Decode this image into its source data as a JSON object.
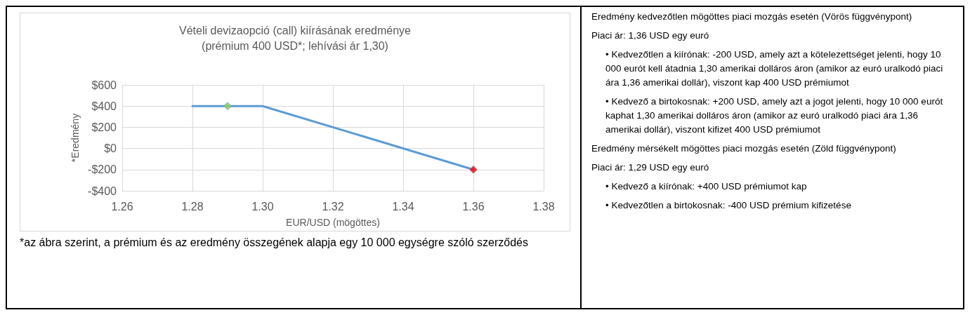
{
  "chart_data": {
    "type": "line",
    "title": "Vételi devizaopció (call) kiírásának eredménye\n(prémium 400 USD*; lehívási ár 1,30)",
    "xlabel": "EUR/USD (mögöttes)",
    "ylabel": "*Eredmény",
    "series": [
      {
        "color": "#5b9bd5",
        "x": [
          1.28,
          1.3,
          1.36
        ],
        "values": [
          400,
          400,
          -200
        ],
        "marker": "none"
      },
      {
        "type": "scatter",
        "colors": [
          "#92d050",
          "#ff0000"
        ],
        "x": [
          1.29,
          1.36
        ],
        "values": [
          400,
          -200
        ],
        "marker": "diamond"
      }
    ],
    "xlim": [
      1.26,
      1.38
    ],
    "xticks": [
      {
        "value": 1.26,
        "label": "1.26"
      },
      {
        "value": 1.28,
        "label": "1.28"
      },
      {
        "value": 1.3,
        "label": "1.30"
      },
      {
        "value": 1.32,
        "label": "1.32"
      },
      {
        "value": 1.34,
        "label": "1.34"
      },
      {
        "value": 1.36,
        "label": "1.36"
      },
      {
        "value": 1.38,
        "label": "1.38"
      }
    ],
    "ylim": [
      -400,
      600
    ],
    "yticks": [
      {
        "value": -400,
        "label": "-$400"
      },
      {
        "value": -200,
        "label": "-$200"
      },
      {
        "value": 0,
        "label": "$0"
      },
      {
        "value": 200,
        "label": "$200"
      },
      {
        "value": 400,
        "label": "$400"
      },
      {
        "value": 600,
        "label": "$600"
      }
    ],
    "grid": true,
    "annotations": [
      "*az ábra szerint, a prémium és az eredmény összegének alapja egy 10 000 egységre szóló szerződés",
      "Eredmény kedvezőtlen mögöttes piaci mozgás esetén (Vörös függvénypont)",
      "Piaci ár: 1,36 USD egy euró",
      "• Kedvezőtlen a kiírónak: -200 USD, amely azt a kötelezettséget jelenti, hogy 10 000 eurót kell átadnia 1,30 amerikai dolláros áron (amikor az euró uralkodó piaci ára 1,36 amerikai dollár), viszont kap 400 USD prémiumot",
      "• Kedvező a birtokosnak: +200 USD, amely azt a jogot jelenti, hogy 10 000 eurót kaphat 1,30 amerikai dolláros áron (amikor az euró uralkodó piaci ára 1,36 amerikai dollár), viszont kifizet 400 USD prémiumot",
      "Eredmény mérsékelt mögöttes piaci mozgás esetén (Zöld függvénypont)",
      "Piaci ár: 1,29 USD egy euró",
      "• Kedvező a kiírónak: +400 USD prémiumot kap",
      "• Kedvezőtlen a birtokosnak: -400 USD prémium kifizetése"
    ]
  }
}
